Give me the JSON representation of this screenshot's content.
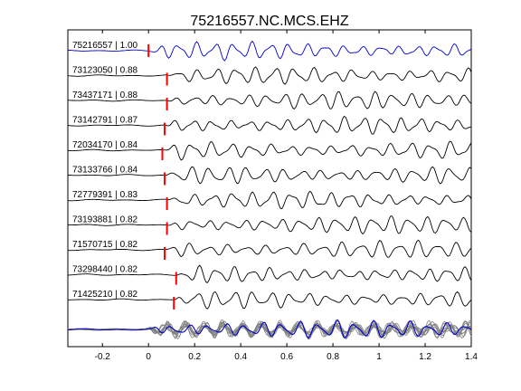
{
  "chart_data": {
    "type": "line",
    "title": "75216557.NC.MCS.EHZ",
    "xlim": [
      -0.35,
      1.4
    ],
    "xticks": [
      -0.2,
      0,
      0.2,
      0.4,
      0.6,
      0.8,
      1,
      1.2,
      1.4
    ],
    "xtick_labels": [
      "-0.2",
      "0",
      "0.2",
      "0.4",
      "0.6",
      "0.8",
      "1",
      "1.2",
      "1.4"
    ],
    "grid": false,
    "colors": {
      "reference": "#0000cc",
      "trace": "#000000",
      "pick": "#ff0000",
      "stack": "#808080"
    },
    "traces": [
      {
        "label": "75216557 | 1.00",
        "pick": 0.0,
        "reference": true
      },
      {
        "label": "73123050 | 0.88",
        "pick": 0.08
      },
      {
        "label": "73437171 | 0.88",
        "pick": 0.08
      },
      {
        "label": "73142791 | 0.87",
        "pick": 0.07
      },
      {
        "label": "72034170 | 0.84",
        "pick": 0.06
      },
      {
        "label": "73133766 | 0.84",
        "pick": 0.07
      },
      {
        "label": "72779391 | 0.83",
        "pick": 0.08
      },
      {
        "label": "73193881 | 0.82",
        "pick": 0.08
      },
      {
        "label": "71570715 | 0.82",
        "pick": 0.07
      },
      {
        "label": "73298440 | 0.82",
        "pick": 0.12
      },
      {
        "label": "71425210 | 0.82",
        "pick": 0.11
      }
    ]
  }
}
